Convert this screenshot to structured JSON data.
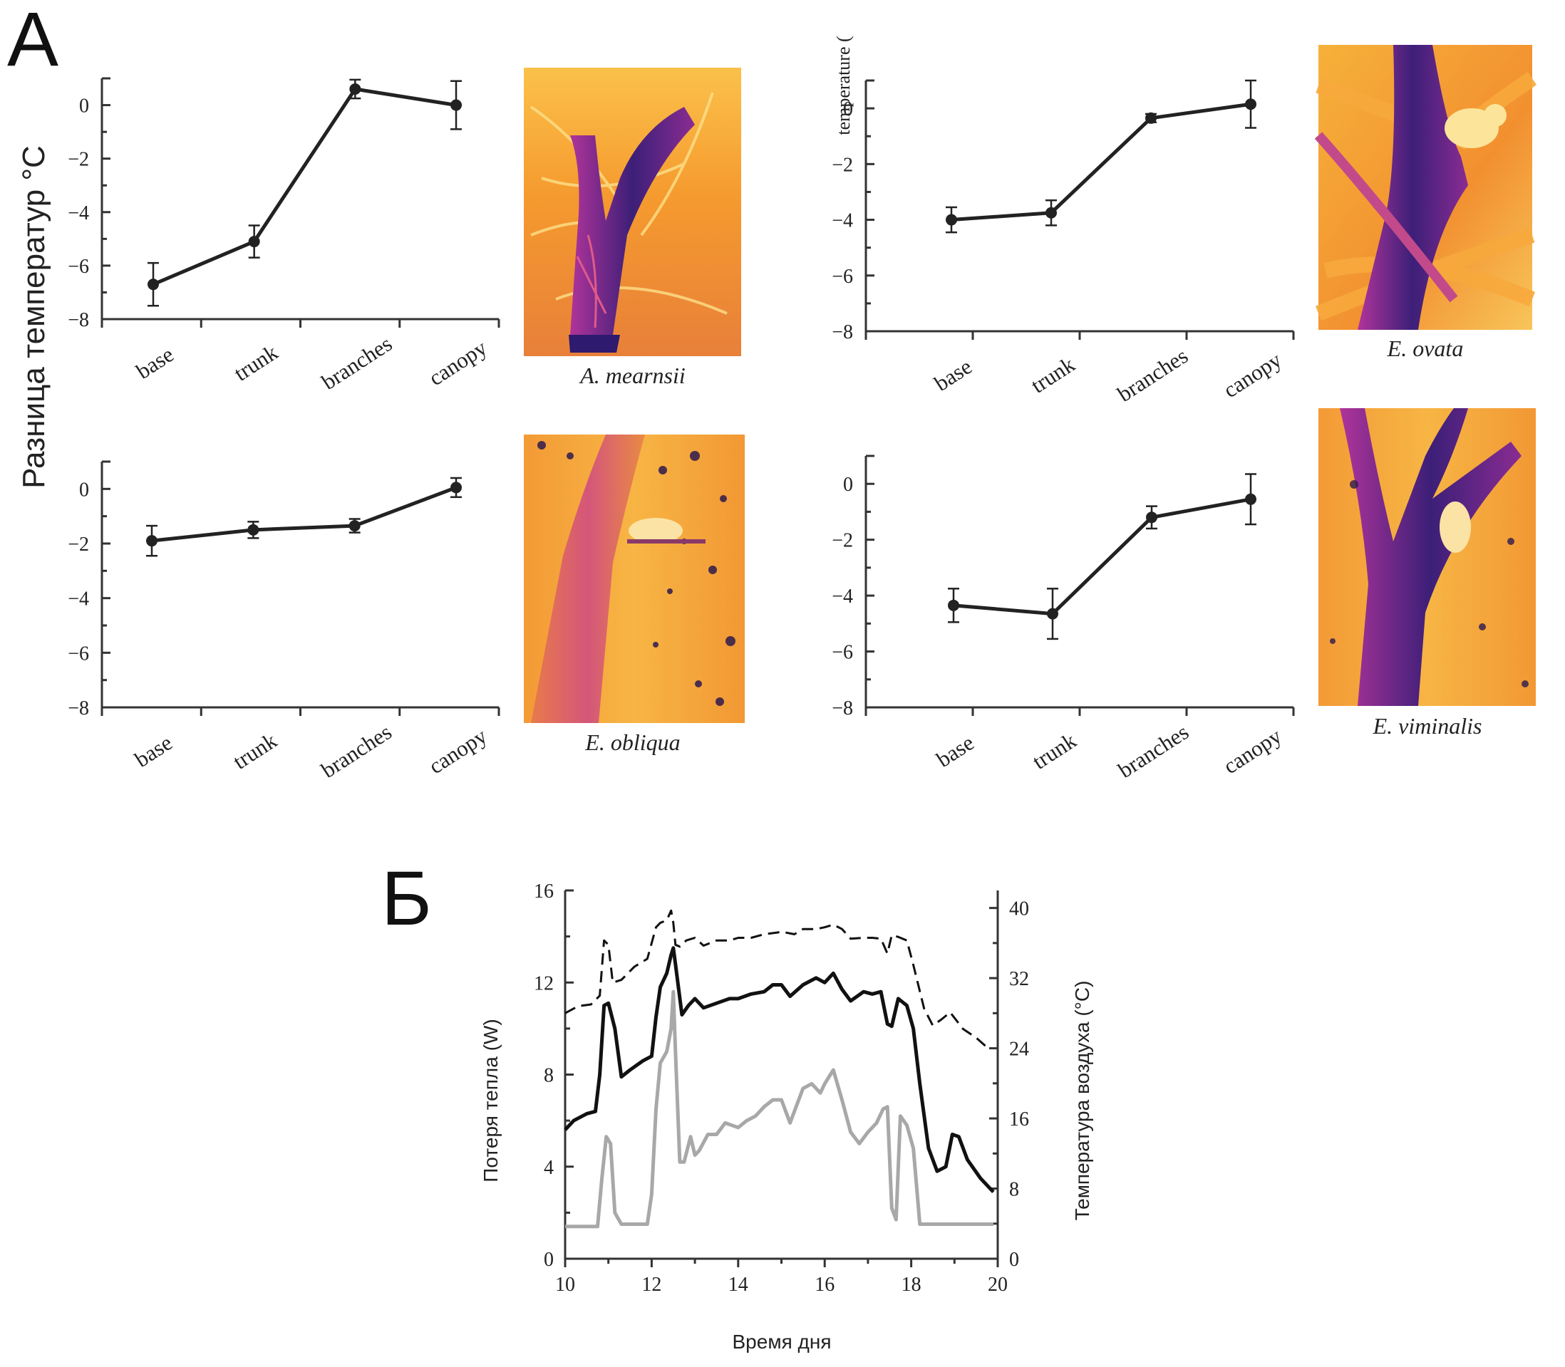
{
  "panels": {
    "a_letter": "А",
    "b_letter": "Б"
  },
  "panel_a": {
    "ylabel": "Разница температур °C",
    "ylabel_partial_top_right": "temperature (",
    "categories": [
      "base",
      "trunk",
      "branches",
      "canopy"
    ],
    "yticks": [
      "0",
      "−2",
      "−4",
      "−6",
      "−8"
    ]
  },
  "panel_b": {
    "ylabel_left": "Потеря тепла (W)",
    "ylabel_right": "Температура воздуха (°C)",
    "xlabel": "Время дня",
    "xticks": [
      "10",
      "12",
      "14",
      "16",
      "18",
      "20"
    ],
    "yticks_left": [
      "0",
      "4",
      "8",
      "12",
      "16"
    ],
    "yticks_right": [
      "0",
      "8",
      "16",
      "24",
      "32",
      "40"
    ]
  },
  "thermal_images": {
    "palette": [
      "#2e1a6e",
      "#6a2a8e",
      "#b0349a",
      "#e05a6a",
      "#f08a2a",
      "#f6b13a",
      "#fbd65a"
    ]
  },
  "chart_data": [
    {
      "type": "line",
      "species": "A. mearnsii",
      "categories": [
        "base",
        "trunk",
        "branches",
        "canopy"
      ],
      "values": [
        -6.7,
        -5.1,
        0.6,
        0.0
      ],
      "error": [
        0.8,
        0.6,
        0.35,
        0.9
      ],
      "ylim": [
        -8,
        1
      ]
    },
    {
      "type": "line",
      "species": "E. ovata",
      "categories": [
        "base",
        "trunk",
        "branches",
        "canopy"
      ],
      "values": [
        -4.0,
        -3.75,
        -0.35,
        0.15
      ],
      "error": [
        0.45,
        0.45,
        0.15,
        0.85
      ],
      "ylim": [
        -8,
        1
      ]
    },
    {
      "type": "line",
      "species": "E. obliqua",
      "categories": [
        "base",
        "trunk",
        "branches",
        "canopy"
      ],
      "values": [
        -1.9,
        -1.5,
        -1.35,
        0.05
      ],
      "error": [
        0.55,
        0.3,
        0.25,
        0.35
      ],
      "ylim": [
        -8,
        1
      ]
    },
    {
      "type": "line",
      "species": "E. viminalis",
      "categories": [
        "base",
        "trunk",
        "branches",
        "canopy"
      ],
      "values": [
        -4.35,
        -4.65,
        -1.2,
        -0.55
      ],
      "error": [
        0.6,
        0.9,
        0.4,
        0.9
      ],
      "ylim": [
        -8,
        1
      ]
    },
    {
      "type": "line",
      "xlim": [
        10,
        20
      ],
      "ylim_left": [
        0,
        16
      ],
      "ylim_right": [
        0,
        42
      ],
      "series": [
        {
          "axis": "right",
          "style": "dashed",
          "color": "#111111",
          "x": [
            10,
            10.3,
            10.6,
            10.8,
            10.9,
            11.0,
            11.1,
            11.3,
            11.6,
            11.9,
            12.0,
            12.1,
            12.2,
            12.35,
            12.45,
            12.5,
            12.55,
            12.65,
            12.8,
            13.0,
            13.2,
            13.5,
            13.8,
            14.0,
            14.3,
            14.6,
            14.9,
            15.0,
            15.3,
            15.5,
            15.8,
            16.0,
            16.2,
            16.4,
            16.6,
            16.9,
            17.1,
            17.3,
            17.45,
            17.55,
            17.7,
            17.9,
            18.05,
            18.3,
            18.5,
            18.7,
            18.9,
            19.2,
            19.5,
            19.8
          ],
          "values": [
            28.0,
            28.8,
            29.0,
            30.0,
            36.3,
            35.8,
            31.5,
            31.8,
            33.3,
            34.2,
            36.0,
            37.8,
            38.3,
            38.6,
            39.7,
            38.3,
            35.8,
            35.6,
            36.3,
            36.6,
            35.7,
            36.3,
            36.3,
            36.6,
            36.6,
            37.0,
            37.2,
            37.3,
            37.0,
            37.6,
            37.6,
            37.8,
            38.1,
            37.6,
            36.5,
            36.6,
            36.6,
            36.5,
            34.8,
            36.9,
            36.7,
            36.3,
            33.5,
            28.5,
            26.6,
            27.3,
            28.1,
            26.2,
            25.2,
            23.9
          ]
        },
        {
          "axis": "left",
          "style": "solid",
          "color": "#111111",
          "x": [
            10,
            10.2,
            10.5,
            10.7,
            10.8,
            10.9,
            11.0,
            11.15,
            11.3,
            11.5,
            11.8,
            12.0,
            12.1,
            12.2,
            12.35,
            12.45,
            12.5,
            12.55,
            12.7,
            12.85,
            13.0,
            13.2,
            13.5,
            13.8,
            14.0,
            14.3,
            14.6,
            14.8,
            15.0,
            15.2,
            15.5,
            15.8,
            16.0,
            16.2,
            16.4,
            16.6,
            16.9,
            17.1,
            17.3,
            17.45,
            17.55,
            17.7,
            17.9,
            18.05,
            18.2,
            18.4,
            18.6,
            18.8,
            18.95,
            19.1,
            19.3,
            19.6,
            19.9
          ],
          "values": [
            5.6,
            6.0,
            6.3,
            6.4,
            8.0,
            11.0,
            11.1,
            10.0,
            7.9,
            8.2,
            8.6,
            8.8,
            10.5,
            11.8,
            12.4,
            13.2,
            13.5,
            12.8,
            10.6,
            11.0,
            11.3,
            10.9,
            11.1,
            11.3,
            11.3,
            11.5,
            11.6,
            11.9,
            11.9,
            11.4,
            11.9,
            12.2,
            12.0,
            12.4,
            11.7,
            11.2,
            11.6,
            11.5,
            11.6,
            10.2,
            10.1,
            11.3,
            11.0,
            10.0,
            7.6,
            4.8,
            3.8,
            4.0,
            5.4,
            5.3,
            4.3,
            3.5,
            2.9
          ]
        },
        {
          "axis": "left",
          "style": "solid",
          "color": "#a8a8a8",
          "x": [
            10,
            10.3,
            10.6,
            10.75,
            10.85,
            10.95,
            11.05,
            11.15,
            11.3,
            11.6,
            11.9,
            12.0,
            12.1,
            12.2,
            12.35,
            12.45,
            12.5,
            12.55,
            12.65,
            12.75,
            12.9,
            13.0,
            13.1,
            13.3,
            13.5,
            13.7,
            14.0,
            14.2,
            14.4,
            14.6,
            14.8,
            15.0,
            15.2,
            15.5,
            15.7,
            15.9,
            16.0,
            16.2,
            16.4,
            16.6,
            16.8,
            17.0,
            17.2,
            17.35,
            17.45,
            17.55,
            17.65,
            17.75,
            17.9,
            18.05,
            18.2,
            18.5,
            19.0,
            19.9
          ],
          "values": [
            1.4,
            1.4,
            1.4,
            1.4,
            3.5,
            5.3,
            5.0,
            2.0,
            1.5,
            1.5,
            1.5,
            2.8,
            6.5,
            8.5,
            9.0,
            10.0,
            11.6,
            9.0,
            4.2,
            4.2,
            5.3,
            4.5,
            4.7,
            5.4,
            5.4,
            5.9,
            5.7,
            6.0,
            6.2,
            6.6,
            6.9,
            6.9,
            5.9,
            7.4,
            7.6,
            7.2,
            7.6,
            8.2,
            6.9,
            5.5,
            5.0,
            5.5,
            5.9,
            6.5,
            6.6,
            2.2,
            1.7,
            6.2,
            5.8,
            4.8,
            1.5,
            1.5,
            1.5,
            1.5
          ]
        }
      ]
    }
  ]
}
